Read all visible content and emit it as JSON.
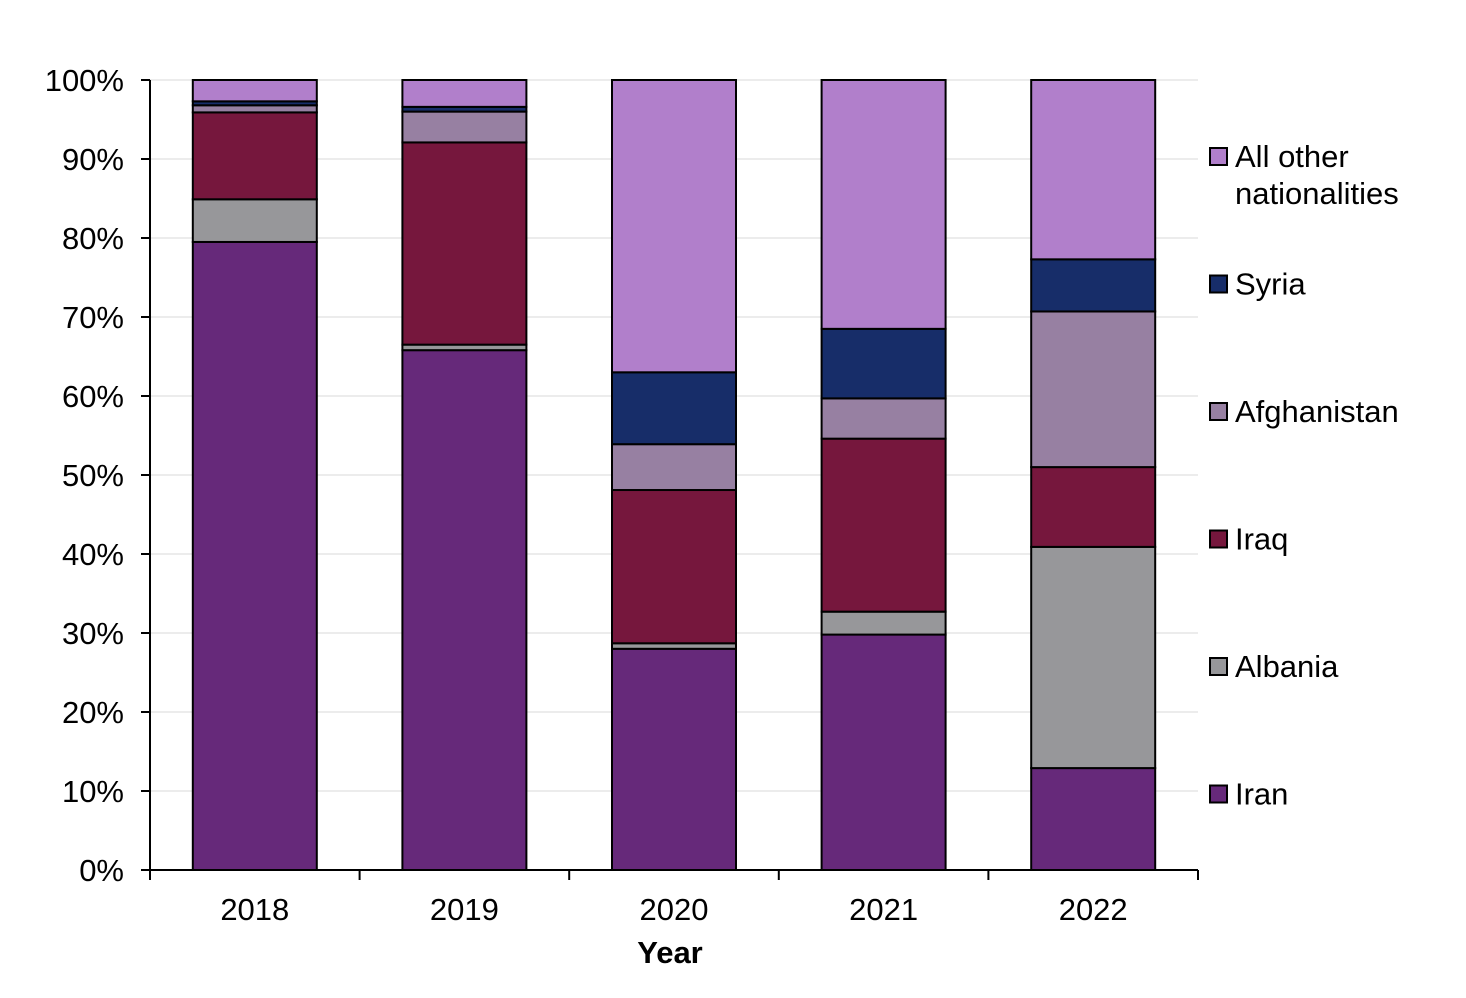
{
  "chart_data": {
    "type": "bar",
    "stacked": true,
    "title": "",
    "xlabel": "Year",
    "ylabel": "",
    "ylim": [
      0,
      100
    ],
    "yticks": [
      "0%",
      "10%",
      "20%",
      "30%",
      "40%",
      "50%",
      "60%",
      "70%",
      "80%",
      "90%",
      "100%"
    ],
    "categories": [
      "2018",
      "2019",
      "2020",
      "2021",
      "2022"
    ],
    "grid": true,
    "legend_position": "right",
    "series": [
      {
        "name": "Iran",
        "color": "#66297a",
        "values": [
          79.5,
          65.8,
          28.0,
          29.8,
          12.9
        ]
      },
      {
        "name": "Albania",
        "color": "#97979a",
        "values": [
          5.4,
          0.7,
          0.7,
          2.9,
          28.0
        ]
      },
      {
        "name": "Iraq",
        "color": "#76173d",
        "values": [
          11.0,
          25.6,
          19.4,
          21.9,
          10.1
        ]
      },
      {
        "name": "Afghanistan",
        "color": "#9780a2",
        "values": [
          0.9,
          3.9,
          5.8,
          5.1,
          19.7
        ]
      },
      {
        "name": "Syria",
        "color": "#172d69",
        "values": [
          0.5,
          0.6,
          9.1,
          8.8,
          6.6
        ]
      },
      {
        "name": "All other nationalities",
        "color": "#b17fcb",
        "values": [
          2.7,
          3.4,
          37.0,
          31.5,
          22.7
        ]
      }
    ],
    "legend_lines": {
      "All other nationalities": [
        "All other",
        "nationalities"
      ]
    }
  }
}
